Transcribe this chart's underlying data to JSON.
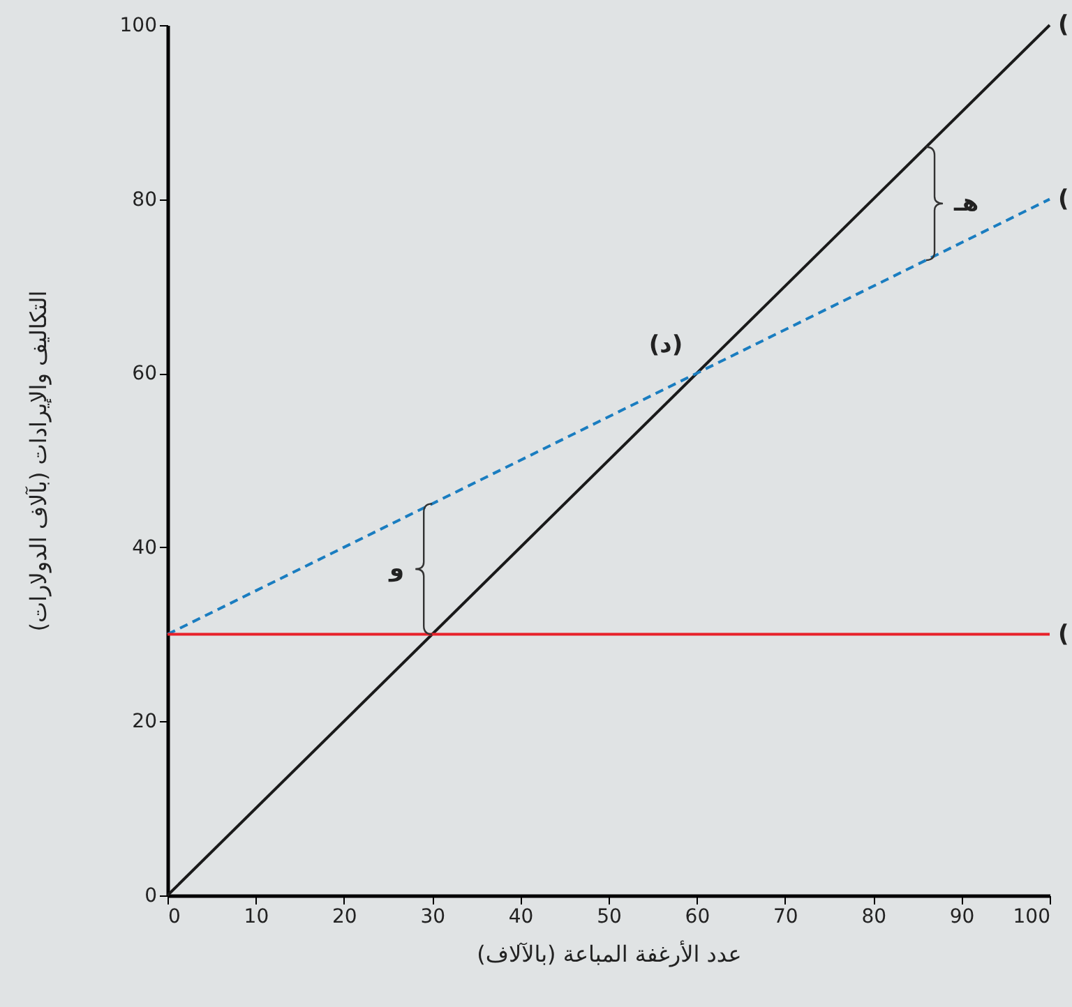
{
  "chart_data": {
    "type": "line",
    "xlabel": "عدد الأرغفة المباعة (بالآلاف)",
    "ylabel": "التكاليف والإيرادات (بآلاف الدولارات)",
    "x": [
      0,
      100
    ],
    "series": [
      {
        "color": "#1a1a1a",
        "values": [
          0,
          100
        ],
        "line_style": "solid"
      },
      {
        "color": "#1a7dc0",
        "values": [
          30,
          80
        ],
        "line_style": "dashed"
      },
      {
        "color": "#e8212a",
        "values": [
          30,
          30
        ],
        "line_style": "solid"
      }
    ],
    "xlim": [
      0,
      100
    ],
    "xticks": [
      0,
      10,
      20,
      30,
      40,
      50,
      60,
      70,
      80,
      90,
      100
    ],
    "ylim": [
      0,
      100
    ],
    "yticks": [
      0,
      20,
      40,
      60,
      80,
      100
    ],
    "grid": false,
    "marker": "none",
    "annotations": [
      {
        "text": "(د)",
        "x": 60,
        "y": 60
      },
      {
        "text": "هـ",
        "x": 86,
        "y": 86
      },
      {
        "text": "و",
        "x": 30,
        "y": 45
      },
      {
        "text": "(",
        "x": 100,
        "y": 100
      },
      {
        "text": "(",
        "x": 100,
        "y": 80
      },
      {
        "text": "(",
        "x": 100,
        "y": 30
      }
    ]
  }
}
